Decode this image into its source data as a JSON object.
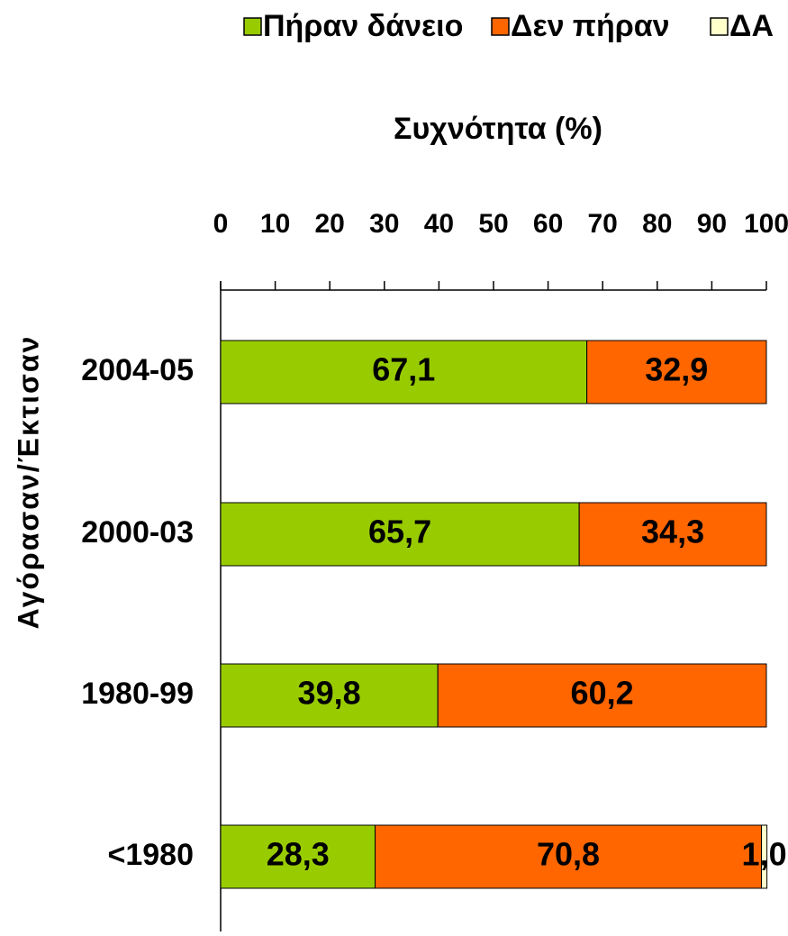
{
  "chart_data": {
    "type": "bar",
    "stacked": true,
    "orientation": "horizontal",
    "title": "",
    "xlabel": "Συχνότητα (%)",
    "ylabel": "Αγόρασαν/Έκτισαν",
    "xlim": [
      0,
      100
    ],
    "xticks": [
      "0",
      "10",
      "20",
      "30",
      "40",
      "50",
      "60",
      "70",
      "80",
      "90",
      "100"
    ],
    "xaxis_position": "top",
    "grid": false,
    "legend_position": "top",
    "categories": [
      "2004-05",
      "2000-03",
      "1980-99",
      "<1980"
    ],
    "series": [
      {
        "name": "Πήραν δάνειο",
        "color": "#99cc00",
        "values": [
          67.1,
          65.7,
          39.8,
          28.3
        ],
        "labels": [
          "67,1",
          "65,7",
          "39,8",
          "28,3"
        ]
      },
      {
        "name": "Δεν πήραν",
        "color": "#ff6600",
        "values": [
          32.9,
          34.3,
          60.2,
          70.8
        ],
        "labels": [
          "32,9",
          "34,3",
          "60,2",
          "70,8"
        ]
      },
      {
        "name": "ΔΑ",
        "color": "#ffffcc",
        "values": [
          0,
          0,
          0,
          1.0
        ],
        "labels": [
          "",
          "",
          "",
          "1,0"
        ]
      }
    ]
  }
}
